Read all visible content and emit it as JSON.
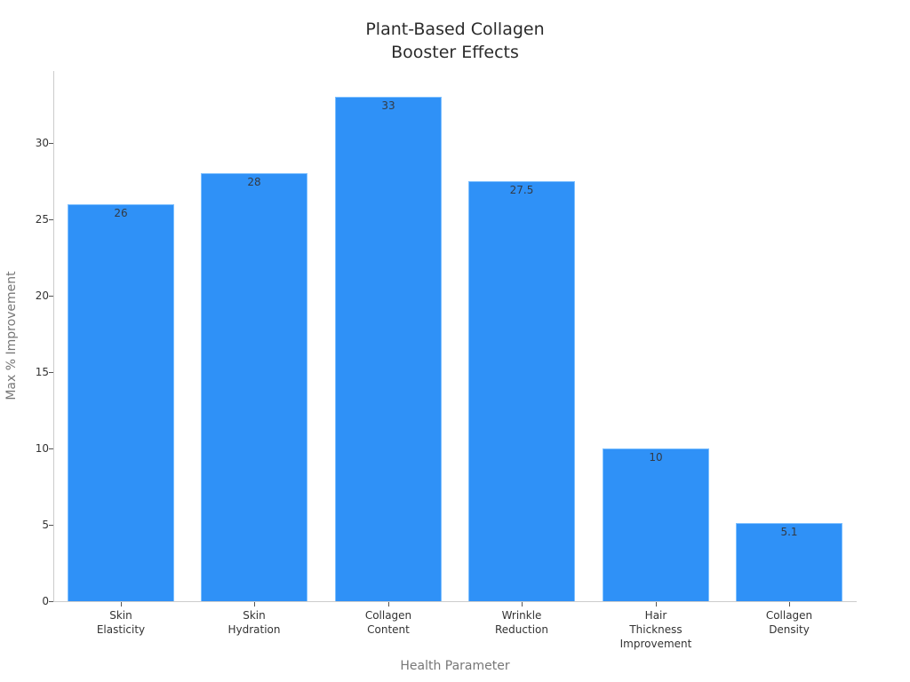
{
  "chart_data": {
    "type": "bar",
    "title": "Plant-Based Collagen Booster Effects",
    "title_lines": [
      "Plant-Based Collagen",
      "Booster Effects"
    ],
    "xlabel": "Health Parameter",
    "ylabel": "Max % Improvement",
    "categories": [
      "Skin Elasticity",
      "Skin Hydration",
      "Collagen Content",
      "Wrinkle Reduction",
      "Hair Thickness Improvement",
      "Collagen Density"
    ],
    "category_lines": [
      [
        "Skin",
        "Elasticity"
      ],
      [
        "Skin",
        "Hydration"
      ],
      [
        "Collagen",
        "Content"
      ],
      [
        "Wrinkle",
        "Reduction"
      ],
      [
        "Hair",
        "Thickness",
        "Improvement"
      ],
      [
        "Collagen",
        "Density"
      ]
    ],
    "values": [
      26,
      28,
      33,
      27.5,
      10,
      5.1
    ],
    "value_labels": [
      "26",
      "28",
      "33",
      "27.5",
      "10",
      "5.1"
    ],
    "yticks": [
      "0",
      "5",
      "10",
      "15",
      "20",
      "25",
      "30"
    ],
    "ylim": [
      0,
      34.7
    ],
    "grid": false,
    "legend": null,
    "bar_color": "#2f91f7"
  }
}
